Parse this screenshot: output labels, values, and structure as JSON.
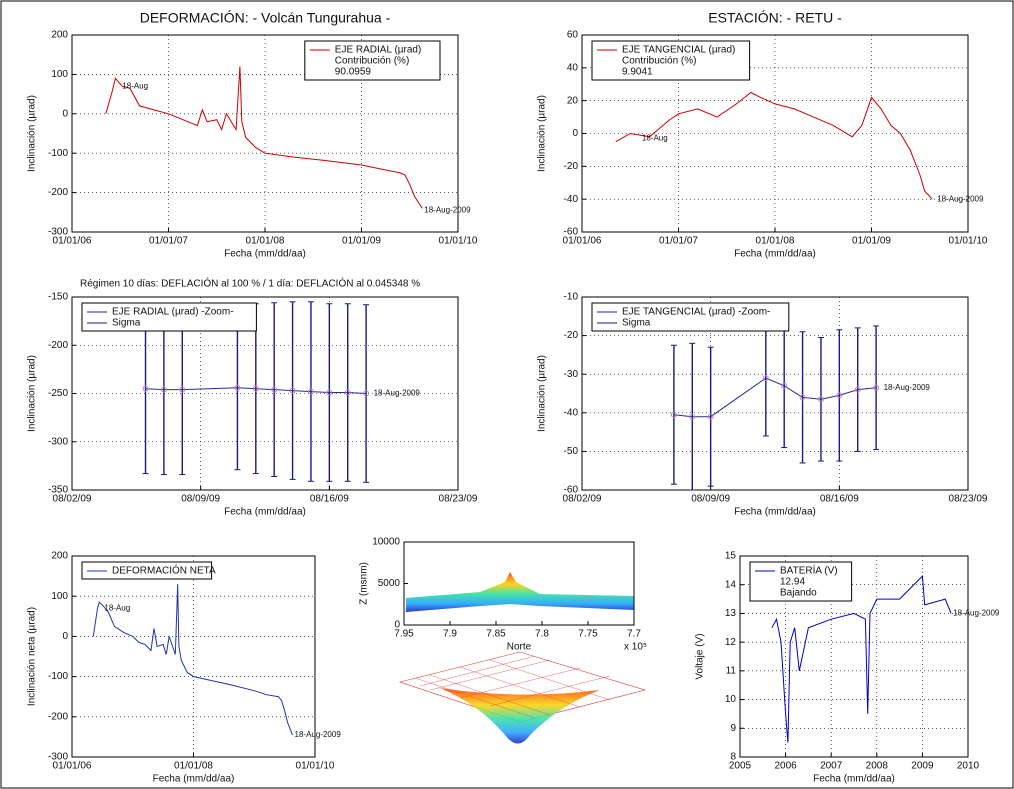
{
  "chart_data": [
    {
      "type": "line",
      "title": "DEFORMACIÓN: - Volcán Tungurahua -",
      "xlabel": "Fecha (mm/dd/aa)",
      "ylabel": "Inclinación (µrad)",
      "xlim": [
        2006,
        2010
      ],
      "xticks": [
        {
          "value": 2006,
          "label": "01/01/06"
        },
        {
          "value": 2007,
          "label": "01/01/07"
        },
        {
          "value": 2008,
          "label": "01/01/08"
        },
        {
          "value": 2009,
          "label": "01/01/09"
        },
        {
          "value": 2010,
          "label": "01/01/10"
        }
      ],
      "ylim": [
        -300,
        200
      ],
      "yticks": [
        -300,
        -200,
        -100,
        0,
        100,
        200
      ],
      "grid": true,
      "legend": "upper right",
      "legend_text": [
        "Contribución (%)",
        "90.0959"
      ],
      "series": [
        {
          "name": "EJE RADIAL (µrad)",
          "color": "#cc0000",
          "x": [
            2006.35,
            2006.42,
            2006.45,
            2006.52,
            2006.6,
            2006.7,
            2006.85,
            2007.0,
            2007.1,
            2007.2,
            2007.3,
            2007.35,
            2007.4,
            2007.5,
            2007.55,
            2007.6,
            2007.7,
            2007.74,
            2007.76,
            2007.8,
            2007.9,
            2008.0,
            2008.3,
            2008.6,
            2009.0,
            2009.2,
            2009.4,
            2009.45,
            2009.5,
            2009.55,
            2009.63
          ],
          "values": [
            0,
            60,
            90,
            70,
            65,
            20,
            10,
            0,
            -10,
            -20,
            -30,
            10,
            -20,
            -15,
            -40,
            0,
            -40,
            120,
            -20,
            -60,
            -85,
            -100,
            -110,
            -118,
            -130,
            -140,
            -150,
            -155,
            -180,
            -210,
            -240
          ]
        }
      ],
      "annotations": [
        {
          "text": "18-Aug",
          "x": 2006.5,
          "y": 70
        },
        {
          "text": "18-Aug-2009",
          "x": 2009.63,
          "y": -245
        }
      ]
    },
    {
      "type": "line",
      "title": "ESTACIÓN: - RETU -",
      "xlabel": "Fecha (mm/dd/aa)",
      "ylabel": "Inclinación (µrad)",
      "xlim": [
        2006,
        2010
      ],
      "xticks": [
        {
          "value": 2006,
          "label": "01/01/06"
        },
        {
          "value": 2007,
          "label": "01/01/07"
        },
        {
          "value": 2008,
          "label": "01/01/08"
        },
        {
          "value": 2009,
          "label": "01/01/09"
        },
        {
          "value": 2010,
          "label": "01/01/10"
        }
      ],
      "ylim": [
        -60,
        60
      ],
      "yticks": [
        -60,
        -40,
        -20,
        0,
        20,
        40,
        60
      ],
      "grid": true,
      "legend": "upper left",
      "legend_text": [
        "Contribución (%)",
        "9.9041"
      ],
      "series": [
        {
          "name": "EJE TANGENCIAL (µrad)",
          "color": "#cc0000",
          "x": [
            2006.35,
            2006.5,
            2006.7,
            2006.9,
            2007.0,
            2007.2,
            2007.4,
            2007.6,
            2007.75,
            2007.85,
            2008.0,
            2008.2,
            2008.4,
            2008.6,
            2008.8,
            2008.9,
            2009.0,
            2009.1,
            2009.2,
            2009.3,
            2009.4,
            2009.5,
            2009.55,
            2009.63
          ],
          "values": [
            -5,
            0,
            -2,
            8,
            12,
            15,
            10,
            18,
            25,
            22,
            18,
            15,
            10,
            5,
            -2,
            5,
            22,
            15,
            5,
            0,
            -10,
            -25,
            -35,
            -40
          ]
        }
      ],
      "annotations": [
        {
          "text": "18-Aug",
          "x": 2006.6,
          "y": -3
        },
        {
          "text": "18-Aug-2009",
          "x": 2009.66,
          "y": -40
        }
      ]
    },
    {
      "type": "errorbar",
      "title": "Régimen 10 días: DEFLACIÓN al 100 % / 1 día: DEFLACIÓN al 0.045348 %",
      "xlabel": "Fecha (mm/dd/aa)",
      "ylabel": "Inclinación (µrad)",
      "xlim": [
        2,
        23
      ],
      "xticks": [
        {
          "value": 2,
          "label": "08/02/09"
        },
        {
          "value": 9,
          "label": "08/09/09"
        },
        {
          "value": 16,
          "label": "08/16/09"
        },
        {
          "value": 23,
          "label": "08/23/09"
        }
      ],
      "ylim": [
        -350,
        -150
      ],
      "yticks": [
        -350,
        -300,
        -250,
        -200,
        -150
      ],
      "grid": true,
      "legend": "upper left",
      "error_name": "Sigma",
      "error_color": "#1a1a80",
      "series": [
        {
          "name": "EJE RADIAL (µrad) -Zoom-",
          "color": "#2a2a90",
          "x": [
            6,
            7,
            8,
            11,
            12,
            13,
            14,
            15,
            16,
            17,
            18
          ],
          "values": [
            -245,
            -246,
            -246,
            -244,
            -245,
            -246,
            -247,
            -248,
            -249,
            -249,
            -250
          ],
          "errors": [
            88,
            88,
            88,
            85,
            88,
            90,
            92,
            93,
            92,
            92,
            92
          ]
        }
      ],
      "annotations": [
        {
          "text": "18-Aug-2009",
          "x": 18.3,
          "y": -250
        }
      ]
    },
    {
      "type": "errorbar",
      "xlabel": "Fecha (mm/dd/aa)",
      "ylabel": "Inclinación (µrad)",
      "xlim": [
        2,
        23
      ],
      "xticks": [
        {
          "value": 2,
          "label": "08/02/09"
        },
        {
          "value": 9,
          "label": "08/09/09"
        },
        {
          "value": 16,
          "label": "08/16/09"
        },
        {
          "value": 23,
          "label": "08/23/09"
        }
      ],
      "ylim": [
        -60,
        -10
      ],
      "yticks": [
        -60,
        -50,
        -40,
        -30,
        -20,
        -10
      ],
      "grid": true,
      "legend": "upper left",
      "error_name": "Sigma",
      "error_color": "#1a1a80",
      "series": [
        {
          "name": "EJE TANGENCIAL (µrad) -Zoom-",
          "color": "#2a2a90",
          "x": [
            7,
            8,
            9,
            12,
            13,
            14,
            15,
            16,
            17,
            18
          ],
          "values": [
            -40.5,
            -41,
            -41,
            -31,
            -33,
            -36,
            -36.5,
            -35.5,
            -34,
            -33.5
          ],
          "errors": [
            18,
            19,
            18,
            15,
            16,
            17,
            16,
            17,
            16,
            16
          ]
        }
      ],
      "annotations": [
        {
          "text": "18-Aug-2009",
          "x": 18.3,
          "y": -33.5
        }
      ]
    },
    {
      "type": "line",
      "xlabel": "Fecha (mm/dd/aa)",
      "ylabel": "Inclinación neta (µrad)",
      "xlim": [
        2006,
        2010
      ],
      "xticks": [
        {
          "value": 2006,
          "label": "01/01/06"
        },
        {
          "value": 2008,
          "label": "01/01/08"
        },
        {
          "value": 2010,
          "label": "01/01/10"
        }
      ],
      "ylim": [
        -300,
        200
      ],
      "yticks": [
        -300,
        -200,
        -100,
        0,
        100,
        200
      ],
      "grid": true,
      "legend": "upper left",
      "series": [
        {
          "name": "DEFORMACIÓN NETA",
          "color": "#2233aa",
          "x": [
            2006.35,
            2006.42,
            2006.45,
            2006.52,
            2006.6,
            2006.7,
            2006.85,
            2007.0,
            2007.1,
            2007.2,
            2007.3,
            2007.35,
            2007.4,
            2007.5,
            2007.55,
            2007.6,
            2007.7,
            2007.74,
            2007.76,
            2007.8,
            2007.9,
            2008.0,
            2008.3,
            2008.6,
            2009.0,
            2009.2,
            2009.4,
            2009.45,
            2009.5,
            2009.55,
            2009.63
          ],
          "values": [
            0,
            70,
            85,
            75,
            60,
            25,
            10,
            0,
            -15,
            -20,
            -35,
            20,
            -25,
            -20,
            -45,
            0,
            -45,
            130,
            -25,
            -60,
            -90,
            -100,
            -110,
            -120,
            -135,
            -145,
            -150,
            -160,
            -185,
            -215,
            -245
          ]
        }
      ],
      "annotations": [
        {
          "text": "18-Aug",
          "x": 2006.5,
          "y": 70
        },
        {
          "text": "18-Aug-2009",
          "x": 2009.63,
          "y": -245
        }
      ]
    },
    {
      "type": "surface",
      "xlabel": "Norte",
      "ylabel": "Z (msnm)",
      "x_exponent": "x 10⁵",
      "xlim": [
        7.95,
        7.7
      ],
      "xticks": [
        7.95,
        7.9,
        7.85,
        7.8,
        7.75,
        7.7
      ],
      "ylim": [
        0,
        10000
      ],
      "yticks": [
        0,
        5000,
        10000
      ],
      "grid": false
    },
    {
      "type": "line",
      "xlabel": "Fecha (mm/dd/aa)",
      "ylabel": "Voltaje (V)",
      "xlim": [
        2005,
        2010
      ],
      "xticks": [
        2005,
        2006,
        2007,
        2008,
        2009,
        2010
      ],
      "ylim": [
        8,
        15
      ],
      "yticks": [
        8,
        9,
        10,
        11,
        12,
        13,
        14,
        15
      ],
      "grid": true,
      "legend": "upper left",
      "legend_text": [
        "12.94",
        "Bajando"
      ],
      "series": [
        {
          "name": "BATERÍA (V)",
          "color": "#0000cc",
          "x": [
            2005.7,
            2005.8,
            2005.9,
            2006.0,
            2006.05,
            2006.1,
            2006.2,
            2006.3,
            2006.5,
            2007.0,
            2007.5,
            2007.75,
            2007.8,
            2007.85,
            2008.0,
            2008.5,
            2009.0,
            2009.05,
            2009.5,
            2009.63
          ],
          "values": [
            12.5,
            12.8,
            12,
            9.5,
            8.5,
            12,
            12.5,
            11,
            12.5,
            12.8,
            13,
            12.8,
            9.5,
            13,
            13.5,
            13.5,
            14.3,
            13.3,
            13.5,
            13
          ]
        }
      ],
      "annotations": [
        {
          "text": "18-Aug-2009",
          "x": 2009.63,
          "y": 13
        }
      ]
    }
  ]
}
